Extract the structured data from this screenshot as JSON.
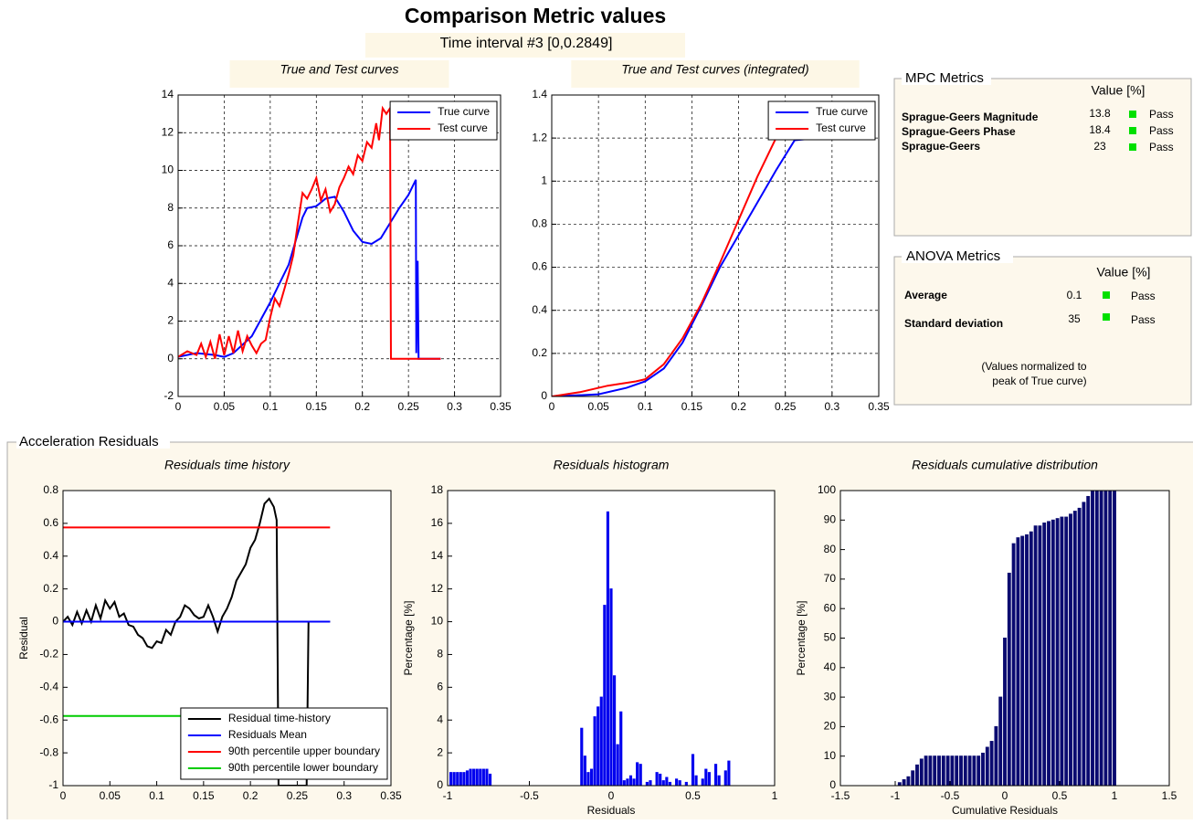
{
  "header": {
    "title": "Comparison Metric values",
    "subtitle": "Time interval #3 [0,0.2849]"
  },
  "mpc": {
    "title": "MPC Metrics",
    "value_header": "Value [%]",
    "rows": [
      {
        "name": "Sprague-Geers Magnitude",
        "value": 13.8,
        "status": "Pass"
      },
      {
        "name": "Sprague-Geers Phase",
        "value": 18.4,
        "status": "Pass"
      },
      {
        "name": "Sprague-Geers",
        "value": 23,
        "status": "Pass"
      }
    ]
  },
  "anova": {
    "title": "ANOVA Metrics",
    "value_header": "Value [%]",
    "rows": [
      {
        "name": "Average",
        "value": 0.1,
        "status": "Pass"
      },
      {
        "name": "Standard deviation",
        "value": 35,
        "status": "Pass"
      }
    ],
    "note": [
      "(Values normalized to",
      "peak of True curve)"
    ]
  },
  "residuals_panel": {
    "title": "Acceleration Residuals"
  },
  "chart_data": [
    {
      "type": "line",
      "title": "True and Test curves",
      "xlim": [
        0,
        0.35
      ],
      "ylim": [
        -2,
        14
      ],
      "xticks": [
        0,
        0.05,
        0.1,
        0.15,
        0.2,
        0.25,
        0.3,
        0.35
      ],
      "yticks": [
        -2,
        0,
        2,
        4,
        6,
        8,
        10,
        12,
        14
      ],
      "grid": true,
      "legend": "upper right",
      "series": [
        {
          "name": "True curve",
          "color": "#0000ff",
          "x": [
            0,
            0.02,
            0.04,
            0.05,
            0.06,
            0.08,
            0.1,
            0.12,
            0.135,
            0.14,
            0.15,
            0.16,
            0.17,
            0.18,
            0.19,
            0.2,
            0.21,
            0.22,
            0.23,
            0.24,
            0.25,
            0.258,
            0.2585,
            0.26,
            0.261,
            0.285
          ],
          "values": [
            0.1,
            0.3,
            0.2,
            0.1,
            0.3,
            1.2,
            3,
            5,
            7.5,
            8,
            8.1,
            8.5,
            8.6,
            7.8,
            6.8,
            6.2,
            6.1,
            6.4,
            7.2,
            8,
            8.7,
            9.5,
            0.3,
            5.2,
            0,
            0
          ]
        },
        {
          "name": "Test curve",
          "color": "#ff0000",
          "x": [
            0,
            0.01,
            0.02,
            0.025,
            0.03,
            0.035,
            0.04,
            0.045,
            0.05,
            0.055,
            0.06,
            0.065,
            0.07,
            0.075,
            0.08,
            0.085,
            0.09,
            0.095,
            0.1,
            0.105,
            0.11,
            0.12,
            0.125,
            0.13,
            0.135,
            0.14,
            0.145,
            0.15,
            0.155,
            0.16,
            0.165,
            0.17,
            0.175,
            0.18,
            0.185,
            0.19,
            0.195,
            0.2,
            0.205,
            0.21,
            0.215,
            0.218,
            0.222,
            0.226,
            0.23,
            0.231,
            0.285
          ],
          "values": [
            0.1,
            0.4,
            0.2,
            0.8,
            0.1,
            0.9,
            0,
            1.3,
            0.2,
            1.2,
            0.3,
            1.5,
            0.4,
            1.2,
            0.7,
            0.3,
            0.8,
            1,
            2.2,
            3.2,
            2.8,
            4.5,
            5.5,
            7.2,
            8.8,
            8.5,
            9,
            9.6,
            8.4,
            9,
            7.8,
            8.2,
            9.1,
            9.6,
            10.2,
            9.8,
            10.8,
            10.5,
            11.5,
            11.2,
            12.5,
            11.6,
            13.3,
            13,
            13.3,
            0,
            0
          ]
        }
      ]
    },
    {
      "type": "line",
      "title": "True and Test curves (integrated)",
      "xlim": [
        0,
        0.35
      ],
      "ylim": [
        0,
        1.4
      ],
      "xticks": [
        0,
        0.05,
        0.1,
        0.15,
        0.2,
        0.25,
        0.3,
        0.35
      ],
      "yticks": [
        0,
        0.2,
        0.4,
        0.6,
        0.8,
        1,
        1.2,
        1.4
      ],
      "grid": true,
      "legend": "upper right",
      "series": [
        {
          "name": "True curve",
          "color": "#0000ff",
          "x": [
            0,
            0.05,
            0.08,
            0.1,
            0.12,
            0.14,
            0.16,
            0.18,
            0.2,
            0.22,
            0.24,
            0.26,
            0.285
          ],
          "values": [
            0,
            0.01,
            0.04,
            0.07,
            0.13,
            0.25,
            0.42,
            0.6,
            0.75,
            0.9,
            1.05,
            1.19,
            1.2
          ]
        },
        {
          "name": "Test curve",
          "color": "#ff0000",
          "x": [
            0,
            0.03,
            0.06,
            0.09,
            0.1,
            0.12,
            0.14,
            0.16,
            0.18,
            0.2,
            0.22,
            0.24,
            0.285
          ],
          "values": [
            0,
            0.02,
            0.05,
            0.07,
            0.08,
            0.15,
            0.27,
            0.43,
            0.62,
            0.82,
            1.02,
            1.2,
            1.2
          ]
        }
      ]
    },
    {
      "type": "line",
      "title": "Residuals time history",
      "ylabel": "Residual",
      "xlim": [
        0,
        0.35
      ],
      "ylim": [
        -1,
        0.8
      ],
      "xticks": [
        0,
        0.05,
        0.1,
        0.15,
        0.2,
        0.25,
        0.3,
        0.35
      ],
      "yticks": [
        -1,
        -0.8,
        -0.6,
        -0.4,
        -0.2,
        0,
        0.2,
        0.4,
        0.6,
        0.8
      ],
      "grid": false,
      "legend": "lower right",
      "series": [
        {
          "name": "Residual time-history",
          "color": "#000000",
          "x": [
            0,
            0.005,
            0.01,
            0.015,
            0.02,
            0.025,
            0.03,
            0.035,
            0.04,
            0.045,
            0.05,
            0.055,
            0.06,
            0.065,
            0.07,
            0.075,
            0.08,
            0.085,
            0.09,
            0.095,
            0.1,
            0.105,
            0.11,
            0.115,
            0.12,
            0.125,
            0.13,
            0.135,
            0.14,
            0.145,
            0.15,
            0.155,
            0.16,
            0.165,
            0.17,
            0.175,
            0.18,
            0.185,
            0.19,
            0.195,
            0.2,
            0.205,
            0.21,
            0.215,
            0.22,
            0.225,
            0.228,
            0.23,
            0.26,
            0.262,
            0.285
          ],
          "values": [
            0,
            0.03,
            -0.02,
            0.06,
            -0.01,
            0.07,
            0,
            0.1,
            0.02,
            0.13,
            0.08,
            0.12,
            0.03,
            0.05,
            -0.02,
            -0.03,
            -0.08,
            -0.1,
            -0.15,
            -0.16,
            -0.12,
            -0.13,
            -0.05,
            -0.08,
            0,
            0.03,
            0.1,
            0.08,
            0.04,
            0.02,
            0.03,
            0.1,
            0.03,
            -0.06,
            0.03,
            0.08,
            0.15,
            0.25,
            0.3,
            0.35,
            0.45,
            0.5,
            0.6,
            0.72,
            0.75,
            0.7,
            0.62,
            -1,
            -1,
            0,
            0
          ]
        },
        {
          "name": "Residuals Mean",
          "color": "#0000ff",
          "x": [
            0,
            0.285
          ],
          "values": [
            0,
            0
          ]
        },
        {
          "name": "90th percentile upper boundary",
          "color": "#ff0000",
          "x": [
            0,
            0.285
          ],
          "values": [
            0.575,
            0.575
          ]
        },
        {
          "name": "90th percentile lower boundary",
          "color": "#00cc00",
          "x": [
            0,
            0.285
          ],
          "values": [
            -0.575,
            -0.575
          ]
        }
      ]
    },
    {
      "type": "bar",
      "title": "Residuals histogram",
      "xlabel": "Residuals",
      "ylabel": "Percentage [%]",
      "color": "#0000ee",
      "xlim": [
        -1,
        1
      ],
      "ylim": [
        0,
        18
      ],
      "xticks": [
        -1,
        -0.5,
        0,
        0.5,
        1
      ],
      "yticks": [
        0,
        2,
        4,
        6,
        8,
        10,
        12,
        14,
        16,
        18
      ],
      "grid": false,
      "x": [
        -0.98,
        -0.96,
        -0.94,
        -0.92,
        -0.9,
        -0.88,
        -0.86,
        -0.84,
        -0.82,
        -0.8,
        -0.78,
        -0.76,
        -0.74,
        -0.18,
        -0.16,
        -0.14,
        -0.12,
        -0.1,
        -0.08,
        -0.06,
        -0.04,
        -0.02,
        0,
        0.02,
        0.04,
        0.06,
        0.08,
        0.1,
        0.12,
        0.14,
        0.16,
        0.18,
        0.22,
        0.24,
        0.28,
        0.3,
        0.32,
        0.34,
        0.36,
        0.4,
        0.42,
        0.46,
        0.5,
        0.52,
        0.56,
        0.58,
        0.6,
        0.64,
        0.66,
        0.7,
        0.72
      ],
      "values": [
        0.8,
        0.8,
        0.8,
        0.8,
        0.8,
        0.9,
        1,
        1,
        1,
        1,
        1,
        1,
        0.7,
        3.5,
        1.8,
        0.8,
        1,
        4.2,
        4.8,
        5.4,
        11,
        16.7,
        12,
        6.7,
        2.5,
        4.5,
        0.3,
        0.4,
        0.6,
        0.4,
        1.4,
        1.3,
        0.2,
        0.3,
        0.8,
        0.7,
        0.3,
        0.5,
        0.2,
        0.4,
        0.3,
        0.2,
        1.9,
        0.6,
        0.4,
        1,
        0.8,
        1.3,
        0.6,
        0.9,
        1.5
      ]
    },
    {
      "type": "bar",
      "title": "Residuals cumulative distribution",
      "xlabel": "Cumulative Residuals",
      "ylabel": "Percentage [%]",
      "color": "#0a0a70",
      "xlim": [
        -1.5,
        1.5
      ],
      "ylim": [
        0,
        100
      ],
      "xticks": [
        -1.5,
        -1,
        -0.5,
        0,
        0.5,
        1,
        1.5
      ],
      "yticks": [
        0,
        10,
        20,
        30,
        40,
        50,
        60,
        70,
        80,
        90,
        100
      ],
      "grid": false,
      "x": [
        -1,
        -0.96,
        -0.92,
        -0.88,
        -0.84,
        -0.8,
        -0.76,
        -0.72,
        -0.68,
        -0.64,
        -0.6,
        -0.56,
        -0.52,
        -0.48,
        -0.44,
        -0.4,
        -0.36,
        -0.32,
        -0.28,
        -0.24,
        -0.2,
        -0.16,
        -0.12,
        -0.08,
        -0.04,
        0,
        0.04,
        0.08,
        0.12,
        0.16,
        0.2,
        0.24,
        0.28,
        0.32,
        0.36,
        0.4,
        0.44,
        0.48,
        0.52,
        0.56,
        0.6,
        0.64,
        0.68,
        0.72,
        0.76,
        0.8,
        0.84,
        0.88,
        0.92,
        0.96,
        1
      ],
      "values": [
        0,
        1,
        2,
        3,
        5,
        7,
        9,
        10,
        10,
        10,
        10,
        10,
        10,
        10,
        10,
        10,
        10,
        10,
        10,
        10,
        11,
        13,
        15,
        20,
        30,
        50,
        72,
        82,
        84,
        84.5,
        85,
        86,
        88,
        88,
        89,
        89.5,
        90,
        90.5,
        91,
        91,
        92,
        93,
        94,
        96,
        98,
        100,
        100,
        100,
        100,
        100,
        100
      ]
    }
  ]
}
